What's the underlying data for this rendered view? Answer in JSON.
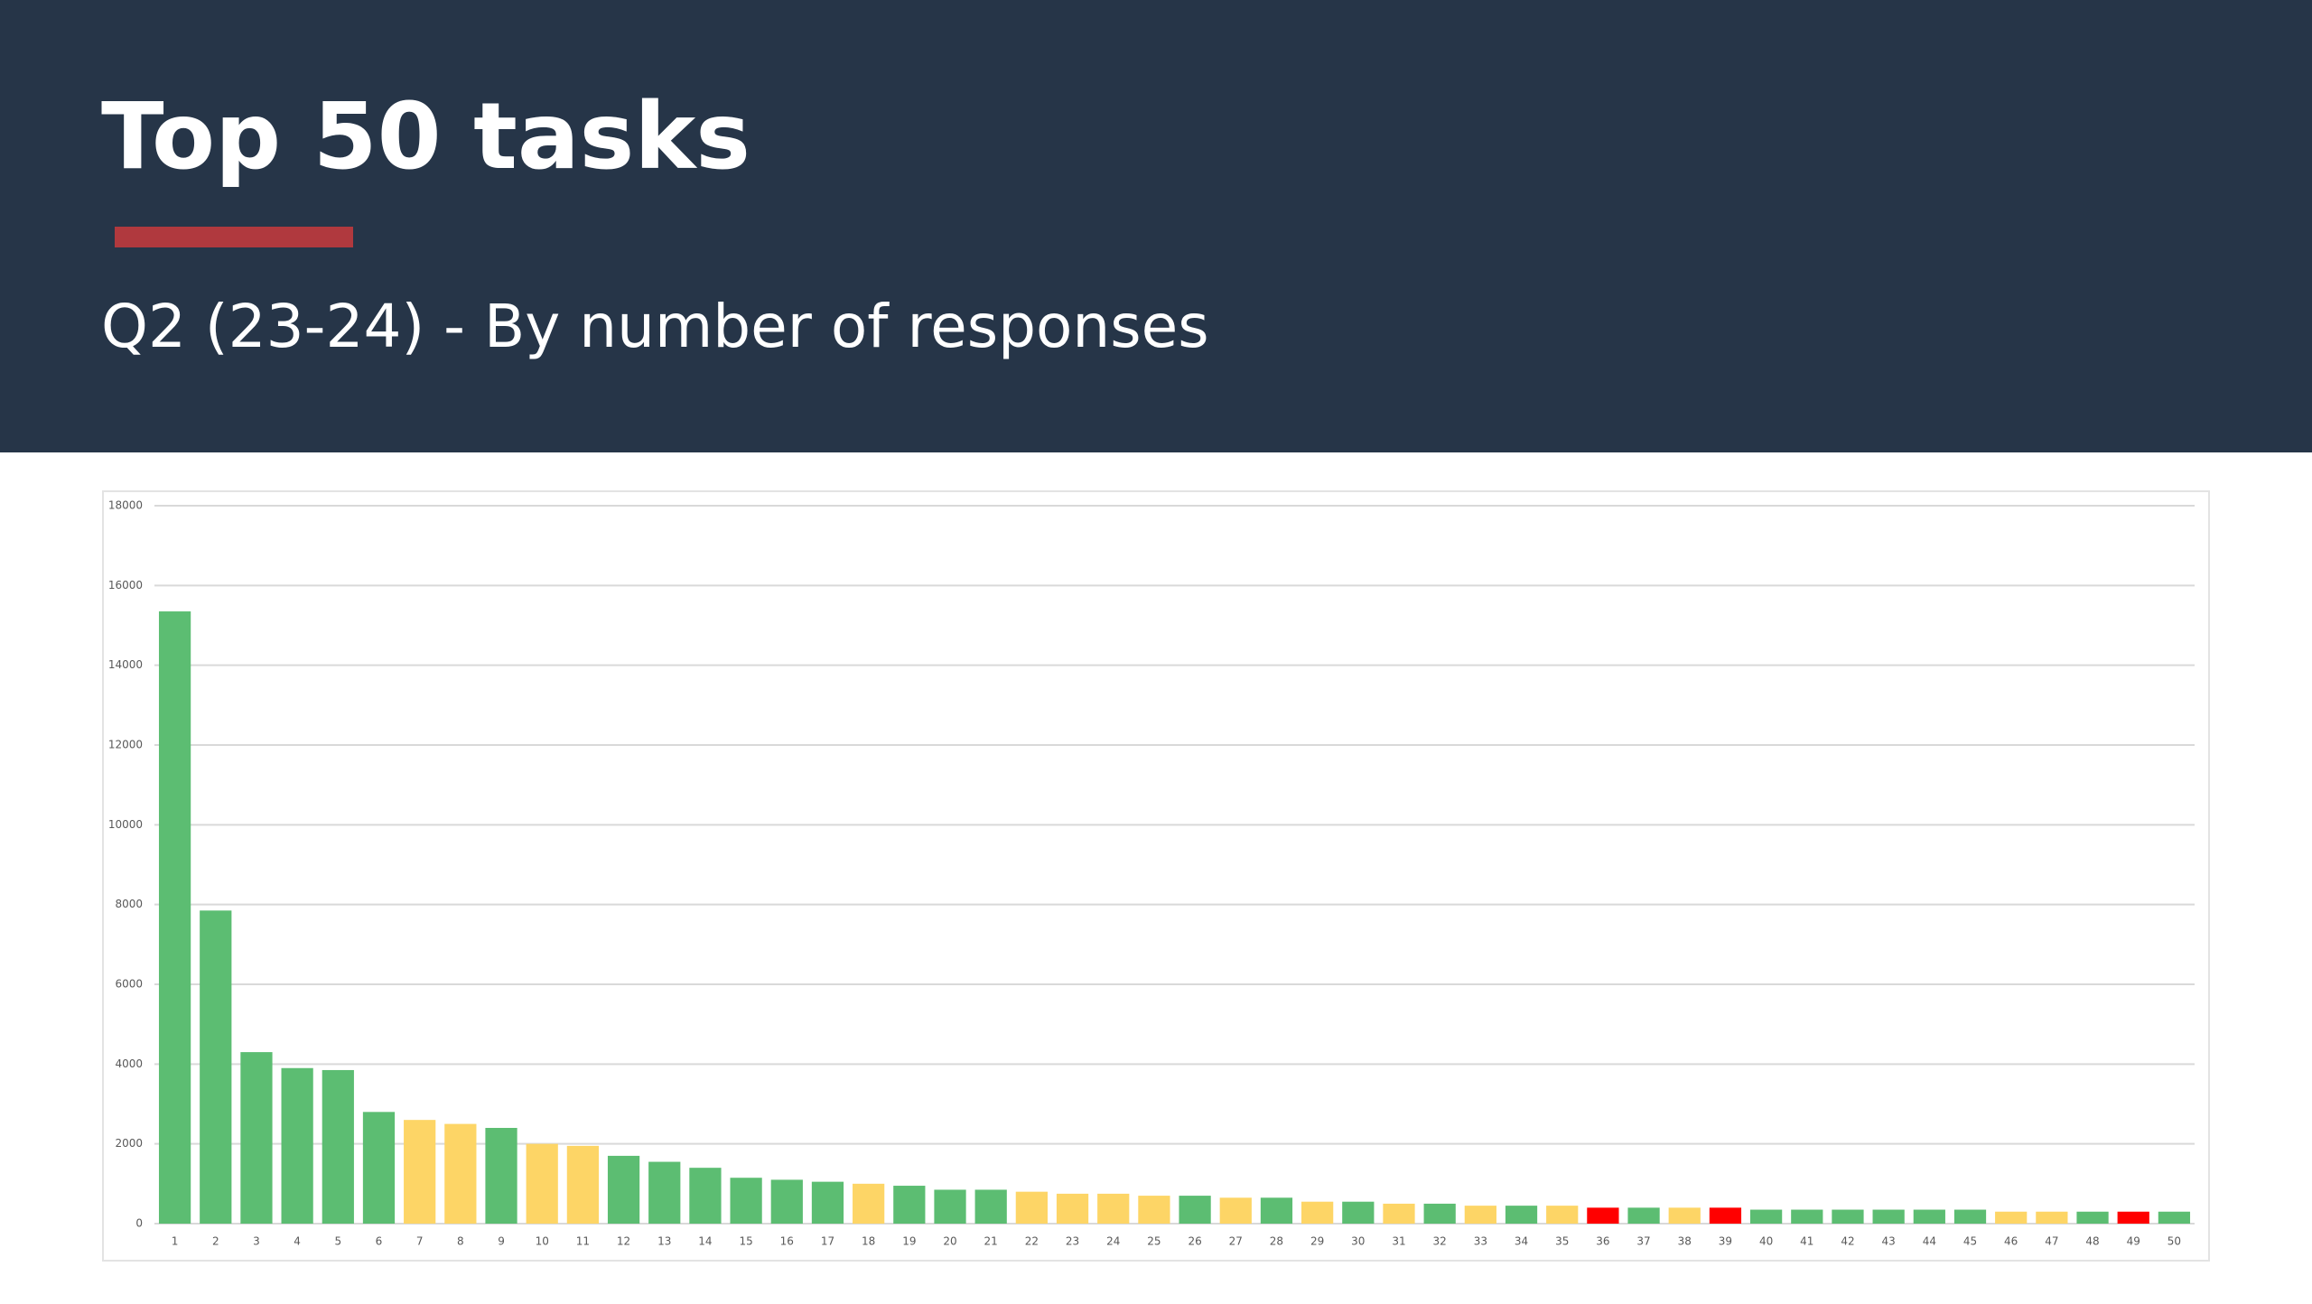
{
  "header": {
    "title": "Top 50 tasks",
    "subtitle": "Q2 (23-24) - By number of responses"
  },
  "chart_data": {
    "type": "bar",
    "categories": [
      "1",
      "2",
      "3",
      "4",
      "5",
      "6",
      "7",
      "8",
      "9",
      "10",
      "11",
      "12",
      "13",
      "14",
      "15",
      "16",
      "17",
      "18",
      "19",
      "20",
      "21",
      "22",
      "23",
      "24",
      "25",
      "26",
      "27",
      "28",
      "29",
      "30",
      "31",
      "32",
      "33",
      "34",
      "35",
      "36",
      "37",
      "38",
      "39",
      "40",
      "41",
      "42",
      "43",
      "44",
      "45",
      "46",
      "47",
      "48",
      "49",
      "50"
    ],
    "values": [
      15350,
      7850,
      4300,
      3900,
      3850,
      2800,
      2600,
      2500,
      2400,
      2000,
      1950,
      1700,
      1550,
      1400,
      1150,
      1100,
      1050,
      1000,
      950,
      850,
      850,
      800,
      750,
      750,
      700,
      700,
      650,
      650,
      550,
      550,
      500,
      500,
      450,
      450,
      450,
      400,
      400,
      400,
      400,
      350,
      350,
      350,
      350,
      350,
      350,
      300,
      300,
      300,
      300,
      300
    ],
    "colors": [
      "#5cbd72",
      "#5cbd72",
      "#5cbd72",
      "#5cbd72",
      "#5cbd72",
      "#5cbd72",
      "#fdd566",
      "#fdd566",
      "#5cbd72",
      "#fdd566",
      "#fdd566",
      "#5cbd72",
      "#5cbd72",
      "#5cbd72",
      "#5cbd72",
      "#5cbd72",
      "#5cbd72",
      "#fdd566",
      "#5cbd72",
      "#5cbd72",
      "#5cbd72",
      "#fdd566",
      "#fdd566",
      "#fdd566",
      "#fdd566",
      "#5cbd72",
      "#fdd566",
      "#5cbd72",
      "#fdd566",
      "#5cbd72",
      "#fdd566",
      "#5cbd72",
      "#fdd566",
      "#5cbd72",
      "#fdd566",
      "#ff0000",
      "#5cbd72",
      "#fdd566",
      "#ff0000",
      "#5cbd72",
      "#5cbd72",
      "#5cbd72",
      "#5cbd72",
      "#5cbd72",
      "#5cbd72",
      "#fdd566",
      "#fdd566",
      "#5cbd72",
      "#ff0000",
      "#5cbd72"
    ],
    "ylim": [
      0,
      18000
    ],
    "yticks": [
      0,
      2000,
      4000,
      6000,
      8000,
      10000,
      12000,
      14000,
      16000,
      18000
    ],
    "grid": true
  }
}
